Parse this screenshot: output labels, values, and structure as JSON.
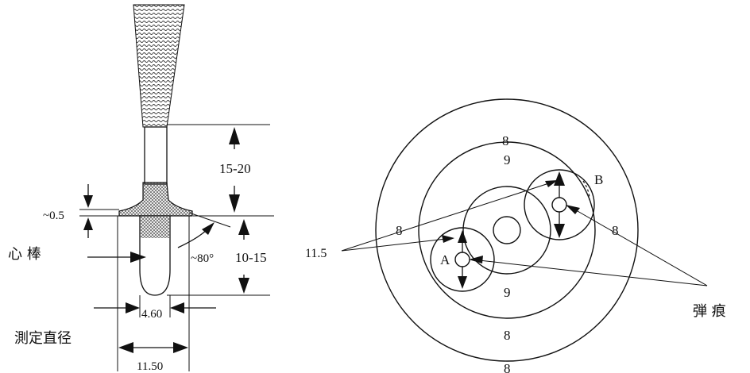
{
  "left_figure": {
    "dim_top": "15-20",
    "dim_flange": "~0.5",
    "dim_lower": "10-15",
    "angle": "~80°",
    "inner_width": "4.60",
    "outer_width": "11.50",
    "label_mandrel": "心 棒",
    "label_measure": "測定直径"
  },
  "right_figure": {
    "ring_labels": {
      "outer_top": "8",
      "middle_top": "9",
      "middle_left": "8",
      "middle_right": "8",
      "middle_bottom": "9",
      "outer_bottom": "8",
      "outer_bottom_partial": "8"
    },
    "point_a": "A",
    "point_b": "B",
    "dim_circle": "11.5",
    "label_bullet_hole": "弾 痕"
  }
}
